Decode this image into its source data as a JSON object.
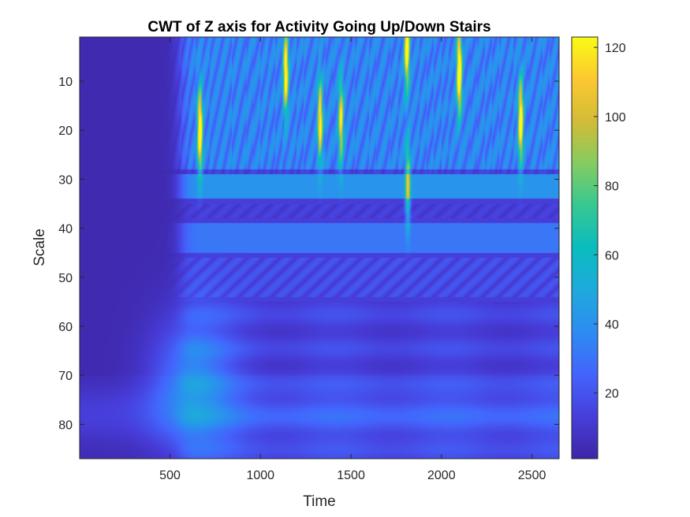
{
  "chart_data": {
    "type": "heatmap",
    "title": "CWT of Z axis for Activity Going Up/Down Stairs",
    "xlabel": "Time",
    "ylabel": "Scale",
    "xlim": [
      1,
      2650
    ],
    "ylim": [
      1,
      87
    ],
    "y_reversed": true,
    "xticks": [
      500,
      1000,
      1500,
      2000,
      2500
    ],
    "yticks": [
      10,
      20,
      30,
      40,
      50,
      60,
      70,
      80
    ],
    "colorbar": {
      "colormap": "parula",
      "limits": [
        1,
        123
      ],
      "ticks": [
        20,
        40,
        60,
        80,
        100,
        120
      ]
    },
    "activity_onset_time": 560,
    "scale_bands": [
      {
        "scale_range": [
          1,
          28
        ],
        "level": 30,
        "note": "high-energy striated region"
      },
      {
        "scale_range": [
          29,
          34
        ],
        "level": 38,
        "note": "bright band"
      },
      {
        "scale_range": [
          35,
          38
        ],
        "level": 8,
        "note": "dark nodes"
      },
      {
        "scale_range": [
          39,
          45
        ],
        "level": 28
      },
      {
        "scale_range": [
          46,
          54
        ],
        "level": 12,
        "note": "dark nodes"
      },
      {
        "scale_range": [
          55,
          87
        ],
        "level": 14
      }
    ],
    "peaks": [
      {
        "time": 665,
        "scale": 20,
        "value": 115
      },
      {
        "time": 1140,
        "scale": 8,
        "value": 105
      },
      {
        "time": 1330,
        "scale": 18,
        "value": 95
      },
      {
        "time": 1810,
        "scale": 3,
        "value": 110
      },
      {
        "time": 2100,
        "scale": 8,
        "value": 123
      },
      {
        "time": 2440,
        "scale": 18,
        "value": 110
      },
      {
        "time": 1445,
        "scale": 18,
        "value": 85
      },
      {
        "time": 1815,
        "scale": 31,
        "value": 70
      }
    ]
  }
}
